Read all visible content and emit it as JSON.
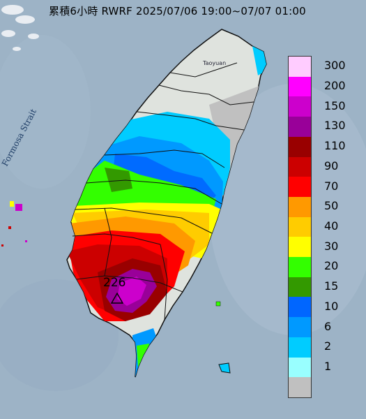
{
  "title": "累積6小時 RWRF 2025/07/06 19:00~07/07 01:00",
  "map_labels": {
    "strait": "Formosa Strait",
    "city": "Taoyuan",
    "peak_value": "226"
  },
  "legend": {
    "classes": [
      {
        "label": "300",
        "color": "#ffccff"
      },
      {
        "label": "200",
        "color": "#ff00ff"
      },
      {
        "label": "150",
        "color": "#cc00cc"
      },
      {
        "label": "130",
        "color": "#990099"
      },
      {
        "label": "110",
        "color": "#990000"
      },
      {
        "label": "90",
        "color": "#cc0000"
      },
      {
        "label": "70",
        "color": "#ff0000"
      },
      {
        "label": "50",
        "color": "#ff9900"
      },
      {
        "label": "40",
        "color": "#ffcc00"
      },
      {
        "label": "30",
        "color": "#ffff00"
      },
      {
        "label": "20",
        "color": "#33ff00"
      },
      {
        "label": "15",
        "color": "#339900"
      },
      {
        "label": "10",
        "color": "#0066ff"
      },
      {
        "label": "6",
        "color": "#0099ff"
      },
      {
        "label": "2",
        "color": "#00ccff"
      },
      {
        "label": "1",
        "color": "#99ffff"
      },
      {
        "label": "",
        "color": "#c0c0c0"
      }
    ]
  },
  "colors": {
    "sea": "#9db3c6",
    "land_terrain": "#dfe3de",
    "boundary": "#111111"
  }
}
